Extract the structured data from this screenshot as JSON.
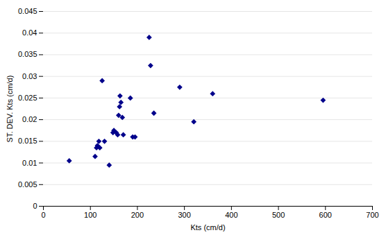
{
  "chart_data": {
    "type": "scatter",
    "x": [
      55,
      110,
      113,
      115,
      118,
      120,
      125,
      130,
      140,
      148,
      150,
      155,
      158,
      160,
      162,
      163,
      165,
      168,
      170,
      185,
      190,
      195,
      225,
      228,
      235,
      290,
      320,
      360,
      595
    ],
    "values": [
      0.0105,
      0.0115,
      0.0135,
      0.014,
      0.015,
      0.0135,
      0.029,
      0.015,
      0.0095,
      0.017,
      0.0175,
      0.017,
      0.0165,
      0.021,
      0.023,
      0.0255,
      0.024,
      0.0205,
      0.0165,
      0.025,
      0.016,
      0.016,
      0.039,
      0.0325,
      0.0215,
      0.0275,
      0.0195,
      0.026,
      0.0245
    ],
    "color": "#00008B",
    "marker": "diamond",
    "xlabel": "Kts (cm/d)",
    "ylabel": "ST. DEV. Kts (cm/d)",
    "xlim": [
      0,
      700
    ],
    "ylim": [
      0,
      0.045
    ],
    "xticks": [
      0,
      100,
      200,
      300,
      400,
      500,
      600,
      700
    ],
    "yticks": [
      0,
      0.005,
      0.01,
      0.015,
      0.02,
      0.025,
      0.03,
      0.035,
      0.04,
      0.045
    ],
    "grid": true
  }
}
